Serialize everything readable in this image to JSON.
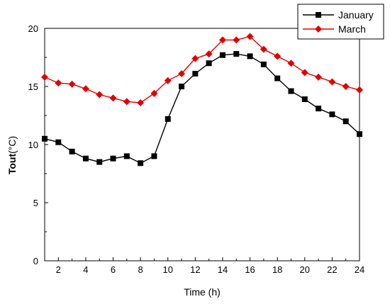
{
  "chart_data": {
    "type": "line",
    "xlabel": "Time (h)",
    "ylabel_bold": "Tout",
    "ylabel_unit": "(°C)",
    "xlim": [
      1,
      24
    ],
    "ylim": [
      0,
      20
    ],
    "xticks": [
      2,
      4,
      6,
      8,
      10,
      12,
      14,
      16,
      18,
      20,
      22,
      24
    ],
    "yticks": [
      0,
      5,
      10,
      15,
      20
    ],
    "grid": false,
    "legend_position": "top-right",
    "x": [
      1,
      2,
      3,
      4,
      5,
      6,
      7,
      8,
      9,
      10,
      11,
      12,
      13,
      14,
      15,
      16,
      17,
      18,
      19,
      20,
      21,
      22,
      23,
      24
    ],
    "series": [
      {
        "name": "January",
        "color": "#000000",
        "marker": "square",
        "values": [
          10.5,
          10.2,
          9.4,
          8.8,
          8.5,
          8.8,
          9.0,
          8.4,
          9.0,
          12.2,
          15.0,
          16.1,
          17.0,
          17.7,
          17.8,
          17.6,
          16.9,
          15.7,
          14.6,
          13.9,
          13.1,
          12.6,
          12.0,
          10.9
        ]
      },
      {
        "name": "March",
        "color": "#e00000",
        "marker": "diamond",
        "values": [
          15.8,
          15.3,
          15.2,
          14.8,
          14.3,
          14.0,
          13.7,
          13.6,
          14.4,
          15.5,
          16.1,
          17.4,
          17.8,
          19.0,
          19.0,
          19.3,
          18.2,
          17.6,
          17.0,
          16.2,
          15.8,
          15.4,
          15.0,
          14.7
        ]
      }
    ]
  }
}
